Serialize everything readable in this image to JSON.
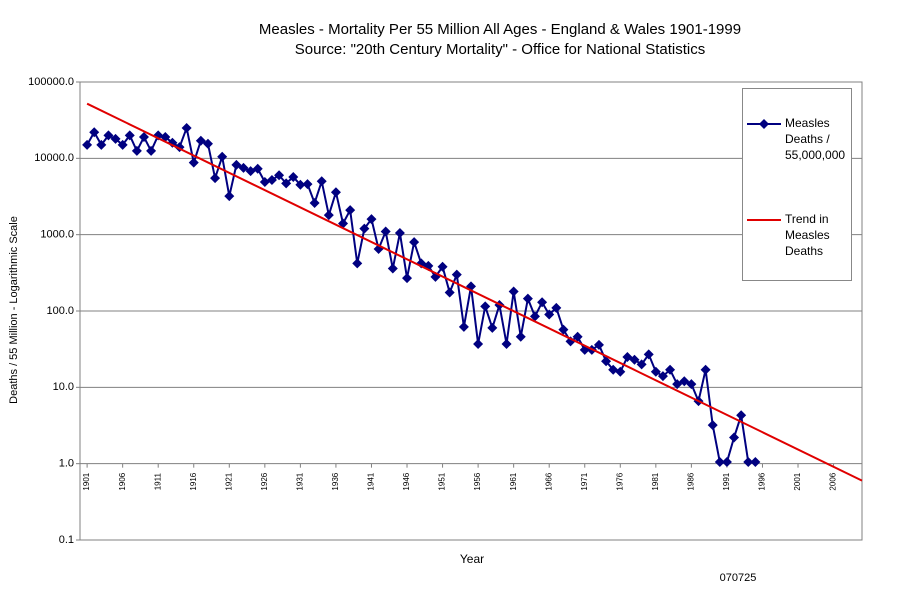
{
  "chart_data": {
    "type": "line",
    "title": "Measles - Mortality Per 55 Million All Ages - England & Wales 1901-1999",
    "subtitle": "Source: \"20th Century Mortality\" - Office for National Statistics",
    "x_label": "Year",
    "y_label": "Deaths / 55 Million - Logarithmic Scale",
    "annotation": "070725",
    "log_scale": true,
    "grid": true,
    "legend": "right",
    "xlim": [
      1900,
      2010
    ],
    "xticks": [
      1901,
      1906,
      1911,
      1916,
      1921,
      1926,
      1931,
      1936,
      1941,
      1946,
      1951,
      1956,
      1961,
      1966,
      1971,
      1976,
      1981,
      1986,
      1991,
      1996,
      2001,
      2006
    ],
    "ylim": [
      0.1,
      100000
    ],
    "yticks": [
      {
        "value": 0.1,
        "label": "0.1"
      },
      {
        "value": 1,
        "label": "1.0"
      },
      {
        "value": 10,
        "label": "10.0"
      },
      {
        "value": 100,
        "label": "100.0"
      },
      {
        "value": 1000,
        "label": "1000.0"
      },
      {
        "value": 10000,
        "label": "10000.0"
      },
      {
        "value": 100000,
        "label": "100000.0"
      }
    ],
    "series": [
      {
        "name": "Measles Deaths / 55,000,000",
        "color": "#000080",
        "marker": "diamond",
        "x": [
          1901,
          1902,
          1903,
          1904,
          1905,
          1906,
          1907,
          1908,
          1909,
          1910,
          1911,
          1912,
          1913,
          1914,
          1915,
          1916,
          1917,
          1918,
          1919,
          1920,
          1921,
          1922,
          1923,
          1924,
          1925,
          1926,
          1927,
          1928,
          1929,
          1930,
          1931,
          1932,
          1933,
          1934,
          1935,
          1936,
          1937,
          1938,
          1939,
          1940,
          1941,
          1942,
          1943,
          1944,
          1945,
          1946,
          1947,
          1948,
          1949,
          1950,
          1951,
          1952,
          1953,
          1954,
          1955,
          1956,
          1957,
          1958,
          1959,
          1960,
          1961,
          1962,
          1963,
          1964,
          1965,
          1966,
          1967,
          1968,
          1969,
          1970,
          1971,
          1972,
          1973,
          1974,
          1975,
          1976,
          1977,
          1978,
          1979,
          1980,
          1981,
          1982,
          1983,
          1984,
          1985,
          1986,
          1987,
          1988,
          1989,
          1990,
          1991,
          1992,
          1993,
          1994,
          1995
        ],
        "values": [
          15000,
          22000,
          15000,
          20000,
          18000,
          15000,
          20000,
          12500,
          19000,
          12500,
          20000,
          19000,
          16000,
          14000,
          25000,
          8800,
          17000,
          15500,
          5500,
          10500,
          3200,
          8200,
          7500,
          6800,
          7300,
          4900,
          5200,
          6000,
          4700,
          5700,
          4500,
          4600,
          2600,
          5000,
          1800,
          3600,
          1400,
          2100,
          420,
          1200,
          1600,
          650,
          1100,
          360,
          1050,
          270,
          800,
          420,
          390,
          280,
          380,
          175,
          300,
          62,
          210,
          37,
          115,
          60,
          120,
          37,
          180,
          46,
          145,
          85,
          130,
          90,
          110,
          57,
          40,
          46,
          31,
          31,
          36,
          22,
          17,
          16,
          25,
          23,
          20,
          27,
          16,
          14,
          17,
          11,
          12,
          11,
          6.6,
          17,
          3.2,
          1.05,
          1.05,
          2.2,
          4.3,
          1.05,
          1.05
        ]
      },
      {
        "name": "Trend in Measles Deaths",
        "color": "#e00000",
        "marker": "none",
        "x": [
          1901,
          2010
        ],
        "values": [
          52000,
          0.6
        ]
      }
    ]
  }
}
